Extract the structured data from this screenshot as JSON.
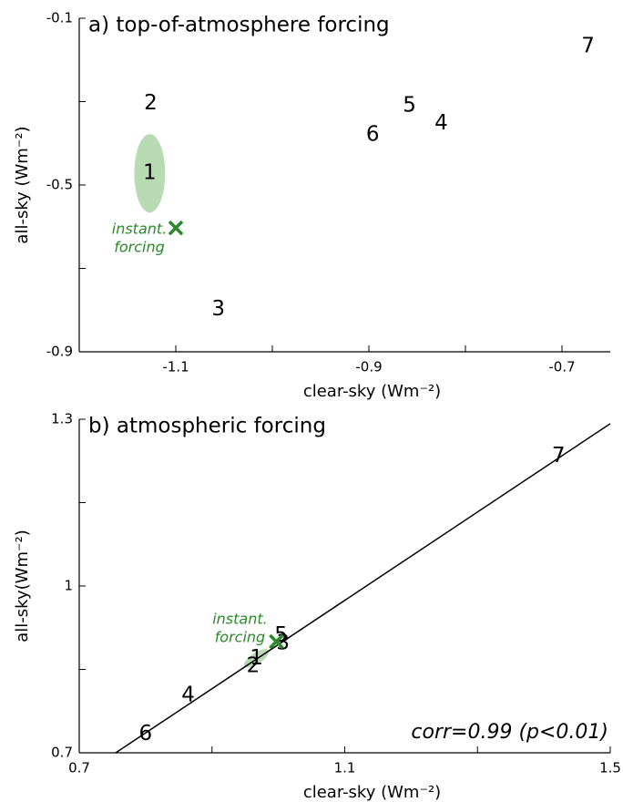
{
  "chart_data": [
    {
      "type": "scatter",
      "title": "a) top-of-atmosphere forcing",
      "x_label": "clear-sky (Wm⁻²)",
      "y_label": "all-sky (Wm⁻²)",
      "xlim": [
        -1.2,
        -0.65
      ],
      "ylim": [
        -0.9,
        -0.1
      ],
      "xticks": [
        -1.1,
        -0.9,
        -0.7
      ],
      "xminor": [
        -1.0,
        -0.8
      ],
      "yticks": [
        -0.1,
        -0.5,
        -0.9
      ],
      "yminor": [
        -0.3,
        -0.7
      ],
      "labels": [
        "1",
        "2",
        "3",
        "4",
        "5",
        "6",
        "7"
      ],
      "x": [
        -1.127,
        -1.126,
        -1.056,
        -0.825,
        -0.858,
        -0.896,
        -0.673
      ],
      "y": [
        -0.472,
        -0.304,
        -0.798,
        -0.352,
        -0.31,
        -0.38,
        -0.168
      ],
      "color": "#000000",
      "ellipse": {
        "x": -1.127,
        "y": -0.472,
        "rx": 0.016,
        "ry": 0.094,
        "color": "#b8dbb4"
      },
      "instant": {
        "x": -1.1,
        "y": -0.603,
        "text": [
          "instant.",
          "forcing"
        ],
        "color": "#2a8a2a"
      }
    },
    {
      "type": "scatter",
      "title": "b) atmospheric forcing",
      "x_label": "clear-sky (Wm⁻²)",
      "y_label": "all-sky(Wm⁻²)",
      "xlim": [
        0.7,
        1.5
      ],
      "ylim": [
        0.7,
        1.3
      ],
      "xticks": [
        0.7,
        1.1,
        1.5
      ],
      "xminor": [
        0.9,
        1.3
      ],
      "yticks": [
        1.3,
        1.0,
        0.7
      ],
      "yminor": [
        1.15,
        0.85
      ],
      "labels": [
        "1",
        "2",
        "3",
        "4",
        "5",
        "6",
        "7"
      ],
      "x": [
        0.967,
        0.962,
        1.007,
        0.864,
        1.004,
        0.8,
        1.422
      ],
      "y": [
        0.87,
        0.856,
        0.897,
        0.803,
        0.911,
        0.734,
        1.234
      ],
      "color": "#000000",
      "ellipse": {
        "x": 0.967,
        "y": 0.87,
        "rx": 0.022,
        "ry": 0.01,
        "color": "#b8dbb4"
      },
      "fit_line": {
        "x": [
          0.755,
          1.5
        ],
        "y": [
          0.7,
          1.292
        ]
      },
      "instant": {
        "x": 0.997,
        "y": 0.9,
        "text": [
          "instant.",
          "forcing"
        ],
        "color": "#2a8a2a"
      },
      "annotation": "corr=0.99 (p<0.01)"
    }
  ]
}
